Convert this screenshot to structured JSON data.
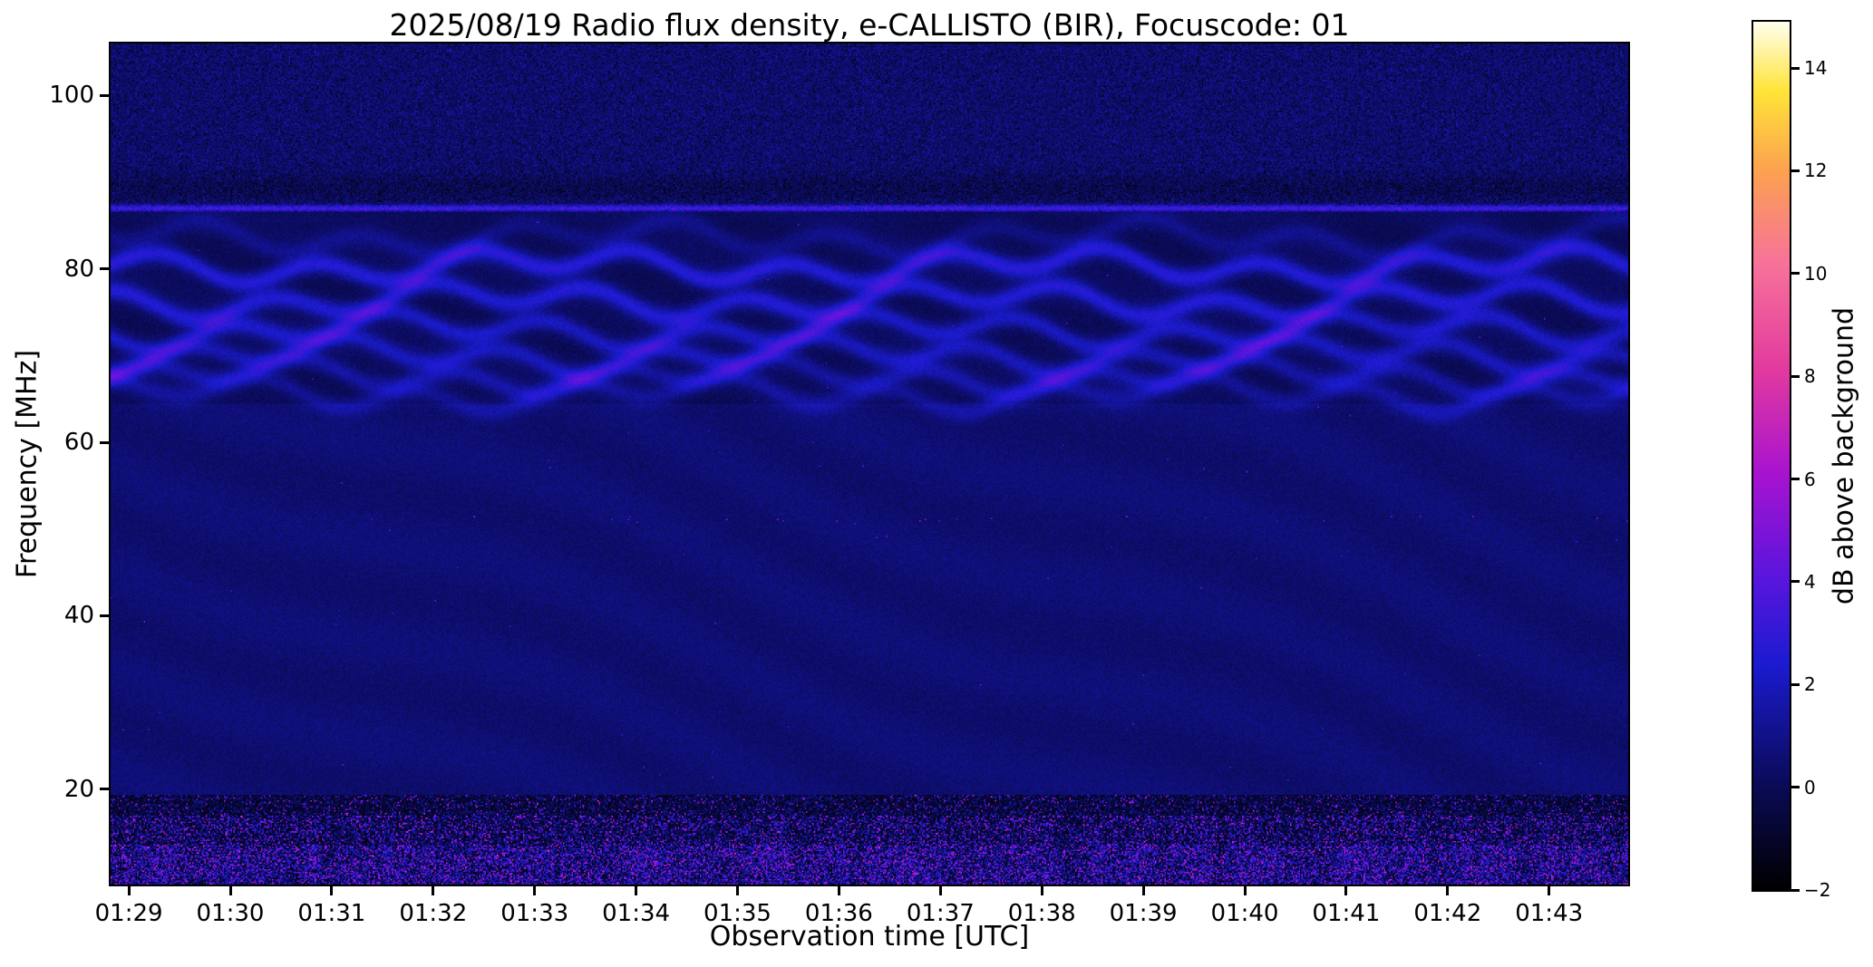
{
  "figure": {
    "title": "2025/08/19  Radio flux density, e-CALLISTO (BIR), Focuscode: 01"
  },
  "chart_data": {
    "type": "heatmap",
    "title": "2025/08/19  Radio flux density, e-CALLISTO (BIR), Focuscode: 01",
    "xlabel": "Observation time [UTC]",
    "ylabel": "Frequency [MHz]",
    "x_tick_labels": [
      "01:29",
      "01:30",
      "01:31",
      "01:32",
      "01:33",
      "01:34",
      "01:35",
      "01:36",
      "01:37",
      "01:38",
      "01:39",
      "01:40",
      "01:41",
      "01:42",
      "01:43"
    ],
    "x_tick_minutes": [
      29,
      30,
      31,
      32,
      33,
      34,
      35,
      36,
      37,
      38,
      39,
      40,
      41,
      42,
      43
    ],
    "x_range_minutes": [
      28.82,
      43.78
    ],
    "y_tick_values": [
      20,
      40,
      60,
      80,
      100
    ],
    "y_range_mhz": [
      9.0,
      106.0
    ],
    "value_range_db": [
      -2.0,
      14.9
    ],
    "colorbar": {
      "label": "dB above background",
      "tick_values": [
        -2,
        0,
        2,
        4,
        6,
        8,
        10,
        12,
        14
      ],
      "colormap": "gnuplot2-like",
      "stops": [
        {
          "t": 0.0,
          "color": "#000000"
        },
        {
          "t": 0.118,
          "color": "#0a0a55"
        },
        {
          "t": 0.26,
          "color": "#1b1bd0"
        },
        {
          "t": 0.36,
          "color": "#5a15dd"
        },
        {
          "t": 0.48,
          "color": "#a813cf"
        },
        {
          "t": 0.6,
          "color": "#e23a9e"
        },
        {
          "t": 0.72,
          "color": "#f7719a"
        },
        {
          "t": 0.83,
          "color": "#fca24f"
        },
        {
          "t": 0.92,
          "color": "#ffe438"
        },
        {
          "t": 1.0,
          "color": "#ffffee"
        }
      ]
    },
    "features": {
      "background_db": 0.55,
      "fringe_bands": {
        "freq_centers_mhz": [
          83.6,
          80.3,
          76.3,
          72.9,
          70.0,
          67.6,
          65.6
        ],
        "amplitudes_db": [
          0.9,
          2.6,
          2.4,
          2.1,
          1.8,
          1.5,
          1.2
        ],
        "sigma_mhz": 0.8,
        "wiggle_amp_mhz": 1.25,
        "wiggle_period_min": 1.55,
        "drift_amp_mhz": 1.0,
        "drift_period_min": 4.9,
        "band_zone_mhz": [
          64.5,
          85.5
        ]
      },
      "rfi_line": {
        "freq_mhz": 87.0,
        "amplitude_db": 3.2
      },
      "noisy_top_band": {
        "freq_min_mhz": 86.6,
        "freq_max_mhz": 106.0
      },
      "noisy_bottom_band": {
        "freq_max_mhz": 19.4,
        "bright_below_mhz": 13.6,
        "mid_below_mhz": 17.0
      },
      "speck_line_mhz": 51.2
    }
  }
}
